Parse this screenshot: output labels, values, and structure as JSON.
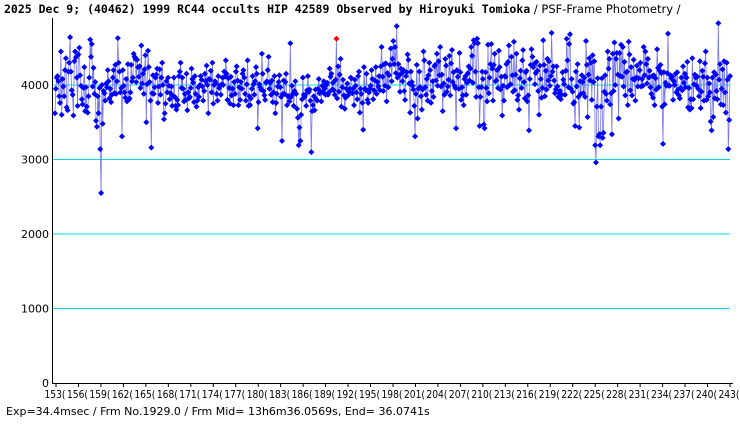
{
  "title": {
    "main": "2025 Dec 9; (40462) 1999 RC44 occults HIP 42589 Observed by Hiroyuki Tomioka",
    "sub": " / PSF-Frame Photometry /"
  },
  "footer": "Exp=34.4msec / Frm No.1929.0 / Frm Mid= 13h6m36.0569s,  End= 36.0741s",
  "colors": {
    "grid": "#00e0e0",
    "series": "#0000ff",
    "line": "#7777ee",
    "event": "#ff0000"
  },
  "chart_data": {
    "type": "scatter",
    "x_start": 1530,
    "x_end": 2440,
    "ylim": [
      0,
      4900
    ],
    "y_ticks": [
      0,
      1000,
      2000,
      3000,
      4000
    ],
    "grid": true,
    "x_tick_labels": [
      "153(",
      "156(",
      "159(",
      "162(",
      "165(",
      "168(",
      "171(",
      "174(",
      "177(",
      "180(",
      "183(",
      "186(",
      "189(",
      "192(",
      "195(",
      "198(",
      "201(",
      "204(",
      "207(",
      "210(",
      "213(",
      "216(",
      "219(",
      "222(",
      "225(",
      "228(",
      "231(",
      "234(",
      "237(",
      "240(",
      "243("
    ],
    "series": [
      {
        "values": [
          3620,
          3950,
          4100,
          4120,
          4050,
          3850,
          3760,
          4450,
          3600,
          4080,
          3980,
          3850,
          4200,
          4360,
          3700,
          3660,
          4180,
          4300,
          4640,
          4180,
          3930,
          3870,
          3590,
          4320,
          4450,
          4370,
          4100,
          3720,
          4410,
          4500,
          4130,
          3990,
          3810,
          3740,
          3960,
          4240,
          3650,
          3970,
          3710,
          3630,
          3850,
          4100,
          4610,
          4380,
          4550,
          3980,
          4230,
          3880,
          4040,
          3520,
          3440,
          3850,
          3620,
          3960,
          3140,
          2550,
          4000,
          3480,
          3920,
          3890,
          3790,
          4020,
          3970,
          4200,
          4050,
          3820,
          3950,
          3770,
          3870,
          4100,
          4200,
          3890,
          4270,
          3880,
          4050,
          4630,
          4300,
          4180,
          3900,
          3960,
          3310,
          4200,
          3990,
          3900,
          3830,
          4080,
          3780,
          4280,
          3800,
          3820,
          3900,
          4270,
          4050,
          4100,
          4420,
          4380,
          4350,
          4040,
          4340,
          4240,
          4110,
          4250,
          3960,
          4530,
          4020,
          4150,
          3880,
          4210,
          4400,
          3500,
          4010,
          4460,
          4240,
          4040,
          3790,
          3160,
          3890,
          4130,
          3880,
          3970,
          4100,
          4140,
          4220,
          3760,
          3980,
          4210,
          3870,
          4100,
          4300,
          4000,
          3540,
          3620,
          3750,
          4050,
          3900,
          4100,
          3990,
          3810,
          3890,
          3980,
          3720,
          3850,
          4100,
          3840,
          3720,
          3670,
          3800,
          3730,
          4120,
          4180,
          4300,
          3960,
          4100,
          3950,
          3780,
          3880,
          3800,
          4150,
          3660,
          3900,
          3820,
          3840,
          3960,
          4220,
          4080,
          4030,
          3770,
          4120,
          3880,
          3710,
          3790,
          3970,
          3840,
          4000,
          4120,
          4070,
          3980,
          3790,
          3920,
          4150,
          4050,
          4260,
          4000,
          3620,
          4080,
          4070,
          4190,
          3900,
          4300,
          3750,
          4000,
          4050,
          4020,
          3880,
          3790,
          4120,
          3960,
          3990,
          3870,
          4010,
          4100,
          4000,
          4180,
          4110,
          4330,
          4150,
          3800,
          4090,
          3960,
          3750,
          4110,
          3860,
          3950,
          3730,
          4040,
          3880,
          4180,
          4250,
          4060,
          3730,
          3970,
          3800,
          4040,
          3950,
          4150,
          4200,
          4100,
          3880,
          3790,
          4010,
          4330,
          3720,
          3850,
          3730,
          3820,
          3950,
          4120,
          4010,
          3870,
          4050,
          4240,
          4150,
          3420,
          3770,
          4010,
          3970,
          3940,
          4420,
          4150,
          3920,
          3860,
          3800,
          4030,
          4050,
          4200,
          4380,
          3950,
          4030,
          3870,
          4060,
          3770,
          3900,
          4120,
          3620,
          3760,
          3880,
          3980,
          4040,
          4130,
          3970,
          3840,
          3250,
          3880,
          4060,
          3880,
          4040,
          4150,
          3730,
          3850,
          3850,
          3780,
          4560,
          3840,
          3990,
          3880,
          3720,
          3920,
          4050,
          3880,
          3680,
          3560,
          3190,
          3430,
          3250,
          3600,
          3810,
          4100,
          3870,
          3840,
          3870,
          3720,
          3930,
          4120,
          3910,
          3940,
          3790,
          3100,
          3650,
          3730,
          3850,
          3660,
          3940,
          3810,
          3790,
          3950,
          4080,
          3890,
          3910,
          3780,
          3990,
          3900,
          4050,
          3950,
          3870,
          4000,
          4030,
          3870,
          3900,
          4220,
          4110,
          4150,
          3940,
          4030,
          3930,
          3870,
          4070,
          4620,
          3820,
          4250,
          3910,
          4140,
          4350,
          3710,
          3970,
          4070,
          3860,
          3680,
          3830,
          3950,
          4020,
          3860,
          3910,
          3950,
          4100,
          4090,
          3890,
          3950,
          3730,
          4070,
          3990,
          3900,
          3810,
          4120,
          4180,
          3630,
          3950,
          3880,
          3760,
          3400,
          4240,
          3950,
          3930,
          4150,
          3800,
          3760,
          3900,
          3950,
          3990,
          4200,
          4080,
          3810,
          3930,
          4060,
          4240,
          3880,
          4040,
          3980,
          4120,
          3930,
          4250,
          4510,
          4110,
          3920,
          4280,
          3990,
          4290,
          3780,
          4160,
          3970,
          4130,
          4270,
          4490,
          4050,
          4350,
          4590,
          4280,
          4510,
          4160,
          4790,
          4100,
          4280,
          4130,
          3910,
          4220,
          4160,
          4050,
          4200,
          3920,
          3800,
          4120,
          4170,
          4410,
          4340,
          4020,
          3630,
          4180,
          4040,
          3990,
          3940,
          3720,
          3310,
          3880,
          4270,
          3550,
          3950,
          4180,
          3970,
          3850,
          3670,
          3940,
          4450,
          4330,
          3970,
          3870,
          4080,
          3790,
          4130,
          4300,
          4200,
          3760,
          3920,
          4050,
          3840,
          4250,
          4270,
          4060,
          4420,
          3990,
          4320,
          4130,
          4510,
          3980,
          4140,
          3650,
          4020,
          3870,
          4350,
          4260,
          3910,
          3980,
          4070,
          4390,
          3860,
          4290,
          4470,
          4040,
          4170,
          3990,
          3960,
          3420,
          4200,
          4110,
          3950,
          4430,
          4170,
          3800,
          3970,
          3860,
          3730,
          4080,
          4120,
          3870,
          4030,
          4160,
          4250,
          4060,
          4220,
          4510,
          4390,
          4030,
          4600,
          4560,
          4180,
          3840,
          4620,
          4560,
          3970,
          3450,
          3840,
          3970,
          4180,
          4080,
          3470,
          3420,
          4170,
          3960,
          3780,
          4540,
          3890,
          4100,
          4280,
          4550,
          4220,
          3790,
          4270,
          4420,
          4050,
          4060,
          4200,
          3960,
          4460,
          4240,
          3940,
          4110,
          3590,
          3990,
          3790,
          4120,
          4110,
          4280,
          3970,
          4310,
          4530,
          4000,
          4010,
          4380,
          4130,
          3910,
          4580,
          3930,
          4140,
          4420,
          3800,
          3860,
          3670,
          4090,
          4190,
          3960,
          4330,
          4470,
          4040,
          3820,
          4170,
          4190,
          3780,
          3860,
          3390,
          4080,
          4270,
          4480,
          4380,
          4240,
          4280,
          4010,
          4160,
          4310,
          4190,
          3920,
          3600,
          4260,
          4080,
          3830,
          3960,
          4600,
          4270,
          3850,
          4190,
          3940,
          4350,
          4060,
          4320,
          3990,
          4120,
          4700,
          4180,
          4250,
          4060,
          3890,
          3940,
          4250,
          3980,
          3840,
          3890,
          3920,
          3810,
          3870,
          4170,
          4070,
          4010,
          3870,
          4190,
          4620,
          4330,
          3970,
          4550,
          4680,
          3950,
          4080,
          3910,
          3750,
          3770,
          3450,
          4180,
          3980,
          4280,
          3840,
          3430,
          4050,
          3880,
          4130,
          4040,
          3890,
          4100,
          3840,
          4590,
          4270,
          3570,
          4140,
          4360,
          4060,
          4300,
          3800,
          4400,
          4040,
          4320,
          3190,
          2960,
          3710,
          4090,
          3310,
          3340,
          3190,
          3710,
          4090,
          3290,
          3360,
          3910,
          4130,
          3880,
          3790,
          4450,
          4220,
          4350,
          3740,
          3890,
          3340,
          4420,
          3920,
          4570,
          4000,
          4350,
          4430,
          4140,
          3550,
          4430,
          4120,
          4540,
          4110,
          4510,
          3980,
          4310,
          3860,
          4170,
          4180,
          3730,
          4580,
          4410,
          3930,
          4240,
          3860,
          4080,
          4340,
          4070,
          3790,
          4100,
          4260,
          3980,
          4090,
          4200,
          4300,
          3980,
          4080,
          3990,
          4510,
          4130,
          4450,
          4280,
          4020,
          4350,
          4100,
          4190,
          3970,
          3880,
          4120,
          3830,
          4130,
          3730,
          4090,
          3940,
          4480,
          4230,
          3970,
          4190,
          4270,
          4160,
          3710,
          3210,
          4170,
          3740,
          4030,
          3990,
          4160,
          4690,
          3990,
          3990,
          4130,
          4090,
          4110,
          3800,
          4050,
          4000,
          4150,
          3900,
          4170,
          3940,
          3860,
          3820,
          3960,
          4100,
          3930,
          4250,
          4030,
          4150,
          3970,
          4100,
          4310,
          3700,
          3960,
          3670,
          3810,
          3690,
          4360,
          3810,
          4010,
          4140,
          4100,
          3990,
          4110,
          3950,
          3850,
          4320,
          3690,
          3910,
          4190,
          4110,
          3790,
          4290,
          4450,
          3800,
          4100,
          3850,
          4020,
          3900,
          3510,
          3390,
          4100,
          3570,
          4170,
          3820,
          4140,
          3920,
          3810,
          4830,
          4070,
          4280,
          3740,
          3950,
          4210,
          3730,
          4320,
          3900,
          3630,
          4300,
          4070,
          3140,
          3530,
          4120
        ],
        "event_index": 336
      }
    ]
  }
}
